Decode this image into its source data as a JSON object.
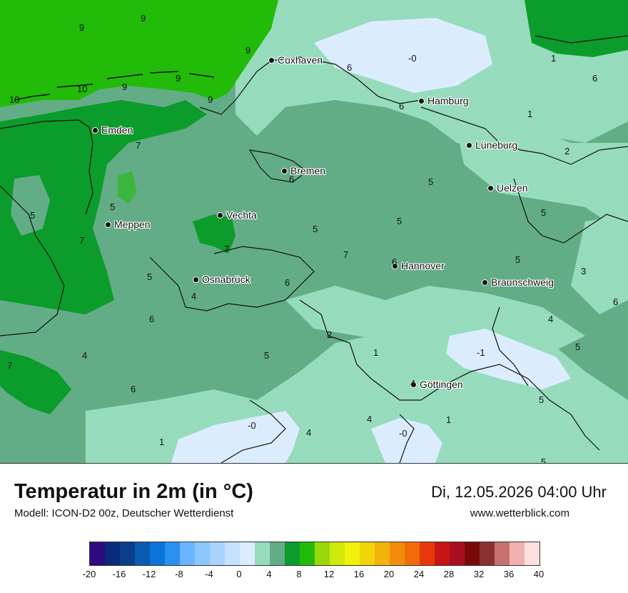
{
  "map": {
    "cities": [
      {
        "name": "Cuxhaven"
      },
      {
        "name": "Hamburg"
      },
      {
        "name": "Emden"
      },
      {
        "name": "Lüneburg"
      },
      {
        "name": "Bremen"
      },
      {
        "name": "Uelzen"
      },
      {
        "name": "Vechta"
      },
      {
        "name": "Meppen"
      },
      {
        "name": "Hannover"
      },
      {
        "name": "Osnabrück"
      },
      {
        "name": "Braunschweig"
      },
      {
        "name": "Göttingen"
      }
    ],
    "temperature_labels": [
      "9",
      "9",
      "9",
      "10",
      "10",
      "9",
      "9",
      "9",
      "-0",
      "1",
      "6",
      "6",
      "6",
      "1",
      "7",
      "2",
      "6",
      "5",
      "5",
      "5",
      "5",
      "5",
      "5",
      "7",
      "7",
      "7",
      "6",
      "5",
      "5",
      "6",
      "3",
      "4",
      "6",
      "4",
      "6",
      "2",
      "1",
      "-1",
      "4",
      "5",
      "7",
      "4",
      "5",
      "6",
      "4",
      "-0",
      "4",
      "-0",
      "1",
      "5",
      "1",
      "5"
    ]
  },
  "footer": {
    "title": "Temperatur in 2m (in °C)",
    "model": "Modell: ICON-D2 00z, Deutscher Wetterdienst",
    "datetime": "Di, 12.05.2026 04:00 Uhr",
    "website": "www.wetterblick.com"
  },
  "colorbar": {
    "colors": [
      "#2d0a7f",
      "#0a2a7a",
      "#0a3d8a",
      "#0a5cb0",
      "#0a75d8",
      "#2b8ff0",
      "#6ab4ff",
      "#8cc6ff",
      "#a8d4ff",
      "#c4e2ff",
      "#dcecff",
      "#96dcbc",
      "#63ad86",
      "#0b9c2c",
      "#22bb0a",
      "#99d60a",
      "#cdea0a",
      "#f0f20a",
      "#f2d40a",
      "#f2b40a",
      "#f28c0a",
      "#f26a0a",
      "#e8380a",
      "#c81414",
      "#a80f1e",
      "#7a0a0a",
      "#8a3030",
      "#c87070",
      "#f0b0b0",
      "#ffe0e0"
    ],
    "ticks": [
      "-20",
      "-16",
      "-12",
      "-8",
      "-4",
      "0",
      "4",
      "8",
      "12",
      "16",
      "20",
      "24",
      "28",
      "32",
      "36",
      "40"
    ]
  }
}
